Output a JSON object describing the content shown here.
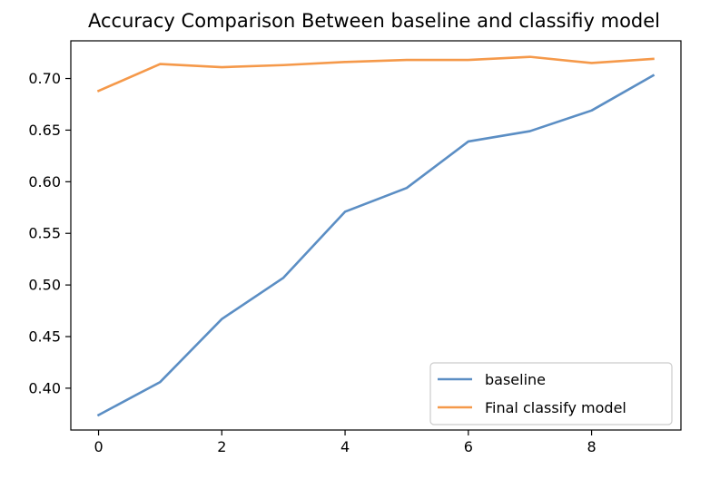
{
  "chart_data": {
    "type": "line",
    "title": "Accuracy Comparison Between baseline and classifiy model",
    "xlabel": "",
    "ylabel": "",
    "x": [
      0,
      1,
      2,
      3,
      4,
      5,
      6,
      7,
      8,
      9
    ],
    "xlim": [
      -0.45,
      9.45
    ],
    "ylim": [
      0.3595,
      0.7365
    ],
    "xticks": [
      0,
      2,
      4,
      6,
      8
    ],
    "yticks": [
      0.4,
      0.45,
      0.5,
      0.55,
      0.6,
      0.65,
      0.7
    ],
    "xtick_labels": [
      "0",
      "2",
      "4",
      "6",
      "8"
    ],
    "ytick_labels": [
      "0.40",
      "0.45",
      "0.50",
      "0.55",
      "0.60",
      "0.65",
      "0.70"
    ],
    "grid": false,
    "legend_position": "bottom-right",
    "series": [
      {
        "name": "baseline",
        "color": "#5b8ec4",
        "values": [
          0.374,
          0.406,
          0.467,
          0.507,
          0.571,
          0.594,
          0.639,
          0.649,
          0.669,
          0.703
        ]
      },
      {
        "name": "Final classify model",
        "color": "#f5994a",
        "values": [
          0.688,
          0.714,
          0.711,
          0.713,
          0.716,
          0.718,
          0.718,
          0.721,
          0.715,
          0.719
        ]
      }
    ]
  }
}
